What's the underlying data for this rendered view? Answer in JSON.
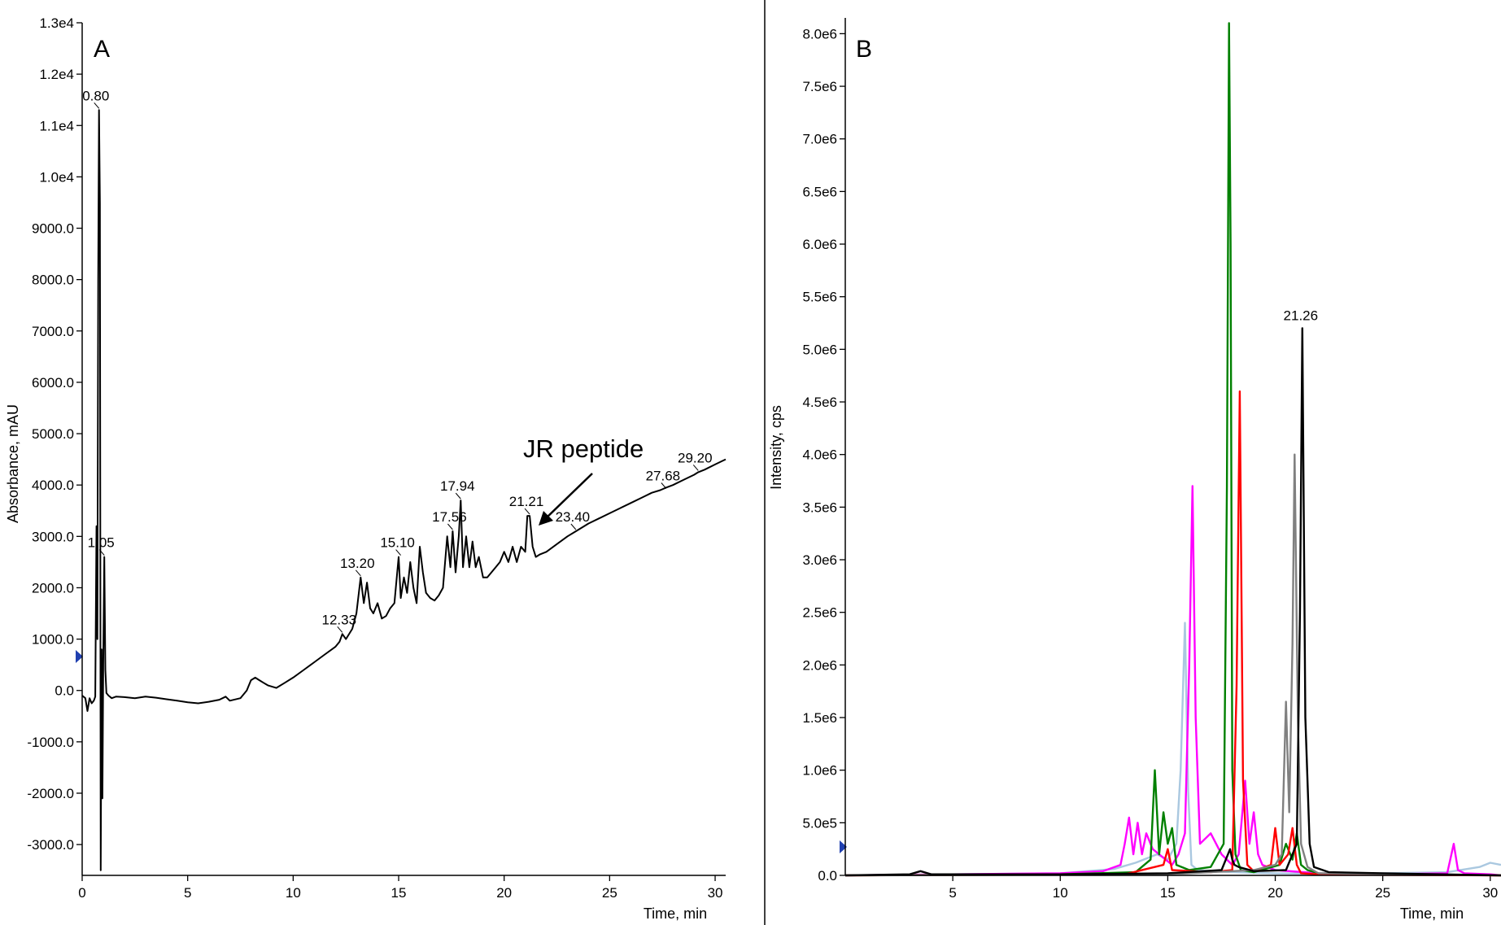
{
  "chart_data": [
    {
      "id": "A",
      "type": "line",
      "panel_label": "A",
      "xlabel": "Time, min",
      "ylabel": "Absorbance, mAU",
      "xlim": [
        0,
        30.5
      ],
      "ylim": [
        -3600,
        13000
      ],
      "x_ticks": [
        0,
        5,
        10,
        15,
        20,
        25,
        30
      ],
      "x_tick_labels": [
        "0",
        "5",
        "10",
        "15",
        "20",
        "25",
        "30"
      ],
      "y_ticks": [
        -3000,
        -2000,
        -1000,
        0,
        1000,
        2000,
        3000,
        4000,
        5000,
        6000,
        7000,
        8000,
        9000,
        10000,
        11000,
        12000,
        13000
      ],
      "y_tick_labels": [
        "-3000.0",
        "-2000.0",
        "-1000.0",
        "0.0",
        "1000.0",
        "2000.0",
        "3000.0",
        "4000.0",
        "5000.0",
        "6000.0",
        "7000.0",
        "8000.0",
        "9000.0",
        "1.0e4",
        "1.1e4",
        "1.2e4",
        "1.3e4"
      ],
      "grid": false,
      "color": "#000000",
      "series": [
        {
          "x": [
            0,
            0.15,
            0.25,
            0.35,
            0.45,
            0.55,
            0.62,
            0.68,
            0.72,
            0.76,
            0.8,
            0.84,
            0.88,
            0.92,
            0.96,
            1.0,
            1.05,
            1.1,
            1.15,
            1.25,
            1.4,
            1.6,
            2,
            2.5,
            3,
            3.5,
            4,
            4.5,
            5,
            5.5,
            6,
            6.5,
            6.8,
            7,
            7.5,
            7.8,
            8.0,
            8.2,
            8.4,
            8.6,
            8.8,
            9.2,
            9.6,
            10,
            10.5,
            11,
            11.5,
            12,
            12.2,
            12.33,
            12.5,
            12.8,
            13.0,
            13.2,
            13.35,
            13.5,
            13.65,
            13.8,
            14.0,
            14.2,
            14.4,
            14.6,
            14.8,
            15.0,
            15.1,
            15.25,
            15.4,
            15.55,
            15.7,
            15.85,
            16.0,
            16.15,
            16.3,
            16.5,
            16.7,
            16.9,
            17.1,
            17.3,
            17.45,
            17.56,
            17.7,
            17.85,
            17.94,
            18.05,
            18.2,
            18.35,
            18.5,
            18.65,
            18.8,
            19.0,
            19.2,
            19.4,
            19.6,
            19.8,
            20.0,
            20.2,
            20.4,
            20.6,
            20.8,
            21.0,
            21.1,
            21.21,
            21.35,
            21.5,
            21.7,
            22,
            22.5,
            23,
            23.4,
            24,
            24.5,
            25,
            25.5,
            26,
            26.5,
            27,
            27.4,
            27.68,
            28,
            28.5,
            29,
            29.2,
            29.5,
            30,
            30.5
          ],
          "y": [
            -100,
            -150,
            -400,
            -150,
            -250,
            -200,
            -120,
            3200,
            1000,
            8000,
            11300,
            9500,
            -3500,
            800,
            -2100,
            500,
            2600,
            400,
            -50,
            -100,
            -150,
            -120,
            -130,
            -150,
            -120,
            -140,
            -170,
            -200,
            -230,
            -250,
            -220,
            -180,
            -120,
            -200,
            -150,
            0,
            200,
            250,
            200,
            150,
            100,
            50,
            150,
            250,
            400,
            550,
            700,
            850,
            950,
            1100,
            1000,
            1200,
            1500,
            2200,
            1700,
            2100,
            1600,
            1500,
            1700,
            1400,
            1450,
            1600,
            1700,
            2600,
            1800,
            2200,
            1900,
            2500,
            2000,
            1700,
            2800,
            2300,
            1900,
            1800,
            1750,
            1850,
            2000,
            3000,
            2400,
            3100,
            2300,
            3000,
            3700,
            2400,
            3000,
            2400,
            2900,
            2400,
            2600,
            2200,
            2200,
            2300,
            2400,
            2500,
            2700,
            2500,
            2800,
            2500,
            2800,
            2700,
            3400,
            3400,
            2800,
            2600,
            2650,
            2700,
            2850,
            3000,
            3100,
            3250,
            3350,
            3450,
            3550,
            3650,
            3750,
            3850,
            3900,
            3950,
            4000,
            4100,
            4200,
            4250,
            4300,
            4400,
            4500
          ]
        }
      ],
      "peak_labels": [
        {
          "text": "0.80",
          "x": 0.8,
          "y": 11300
        },
        {
          "text": "1.05",
          "x": 1.05,
          "y": 2600
        },
        {
          "text": "12.33",
          "x": 12.33,
          "y": 1100
        },
        {
          "text": "13.20",
          "x": 13.2,
          "y": 2200
        },
        {
          "text": "15.10",
          "x": 15.1,
          "y": 2600
        },
        {
          "text": "17.56",
          "x": 17.56,
          "y": 3100
        },
        {
          "text": "17.94",
          "x": 17.94,
          "y": 3700
        },
        {
          "text": "21.21",
          "x": 21.21,
          "y": 3400
        },
        {
          "text": "23.40",
          "x": 23.4,
          "y": 3100
        },
        {
          "text": "27.68",
          "x": 27.68,
          "y": 3900
        },
        {
          "text": "29.20",
          "x": 29.2,
          "y": 4250
        }
      ],
      "annotations": [
        {
          "text": "JR peptide",
          "arrow_to": {
            "x": 21.5,
            "y": 3200
          }
        }
      ]
    },
    {
      "id": "B",
      "type": "line",
      "panel_label": "B",
      "xlabel": "Time, min",
      "ylabel": "Intensity, cps",
      "xlim": [
        0,
        30.5
      ],
      "ylim": [
        0,
        8150000
      ],
      "x_ticks": [
        5,
        10,
        15,
        20,
        25,
        30
      ],
      "x_tick_labels": [
        "5",
        "10",
        "15",
        "20",
        "25",
        "30"
      ],
      "y_ticks": [
        0,
        500000,
        1000000,
        1500000,
        2000000,
        2500000,
        3000000,
        3500000,
        4000000,
        4500000,
        5000000,
        5500000,
        6000000,
        6500000,
        7000000,
        7500000,
        8000000
      ],
      "y_tick_labels": [
        "0.0",
        "5.0e5",
        "1.0e6",
        "1.5e6",
        "2.0e6",
        "2.5e6",
        "3.0e6",
        "3.5e6",
        "4.0e6",
        "4.5e6",
        "5.0e6",
        "5.5e6",
        "6.0e6",
        "6.5e6",
        "7.0e6",
        "7.5e6",
        "8.0e6"
      ],
      "grid": false,
      "series": [
        {
          "color": "#aac8e0",
          "x": [
            0,
            10,
            12.5,
            13.5,
            14.5,
            15.0,
            15.4,
            15.6,
            15.8,
            15.95,
            16.1,
            16.4,
            17,
            18,
            20,
            22,
            25,
            28,
            29.5,
            30,
            30.5
          ],
          "y": [
            0,
            20000,
            60000,
            120000,
            200000,
            150000,
            300000,
            1000000,
            2400000,
            800000,
            100000,
            50000,
            40000,
            30000,
            20000,
            15000,
            20000,
            30000,
            80000,
            120000,
            100000
          ]
        },
        {
          "color": "#ff00ff",
          "x": [
            0,
            5,
            10,
            12,
            12.8,
            13.0,
            13.2,
            13.4,
            13.6,
            13.8,
            14.0,
            14.3,
            15.2,
            15.5,
            15.8,
            16.0,
            16.15,
            16.3,
            16.5,
            17.0,
            17.5,
            18.0,
            18.3,
            18.6,
            18.8,
            19.0,
            19.2,
            19.4,
            20,
            22,
            25,
            28,
            28.3,
            28.5,
            28.8,
            30,
            30.5
          ],
          "y": [
            0,
            10000,
            20000,
            40000,
            100000,
            300000,
            550000,
            200000,
            500000,
            200000,
            400000,
            250000,
            100000,
            200000,
            400000,
            2000000,
            3700000,
            1500000,
            300000,
            400000,
            200000,
            100000,
            200000,
            900000,
            300000,
            600000,
            200000,
            100000,
            50000,
            20000,
            10000,
            20000,
            300000,
            50000,
            20000,
            10000,
            0
          ]
        },
        {
          "color": "#008000",
          "x": [
            0,
            10,
            13.5,
            14.2,
            14.4,
            14.6,
            14.8,
            15.0,
            15.2,
            15.4,
            16,
            17,
            17.6,
            17.75,
            17.85,
            17.92,
            18.0,
            18.15,
            18.4,
            19,
            20.2,
            20.5,
            20.8,
            21.0,
            21.2,
            21.5,
            22,
            25,
            30.5
          ],
          "y": [
            0,
            10000,
            30000,
            150000,
            1000000,
            200000,
            600000,
            300000,
            450000,
            100000,
            50000,
            80000,
            300000,
            3700000,
            8100000,
            6000000,
            1000000,
            200000,
            50000,
            30000,
            100000,
            300000,
            150000,
            400000,
            100000,
            50000,
            20000,
            10000,
            0
          ]
        },
        {
          "color": "#ff0000",
          "x": [
            0,
            13,
            14.8,
            15.0,
            15.2,
            17,
            18.0,
            18.2,
            18.35,
            18.5,
            18.7,
            19,
            19.8,
            20.0,
            20.2,
            20.6,
            20.8,
            21.0,
            21.2,
            22,
            25,
            30.5
          ],
          "y": [
            0,
            10000,
            100000,
            250000,
            50000,
            30000,
            50000,
            1800000,
            4600000,
            900000,
            100000,
            40000,
            100000,
            450000,
            100000,
            200000,
            450000,
            100000,
            20000,
            10000,
            5000,
            0
          ]
        },
        {
          "color": "#808080",
          "x": [
            0,
            15,
            19,
            20.0,
            20.3,
            20.5,
            20.65,
            20.8,
            20.9,
            21.05,
            21.2,
            21.5,
            22,
            30.5
          ],
          "y": [
            0,
            10000,
            50000,
            100000,
            200000,
            1650000,
            600000,
            2200000,
            4000000,
            1500000,
            300000,
            80000,
            20000,
            0
          ]
        },
        {
          "color": "#000000",
          "x": [
            0,
            3,
            3.5,
            4,
            10,
            15,
            17.5,
            17.9,
            18.0,
            18.1,
            18.3,
            19,
            20.5,
            21.0,
            21.15,
            21.26,
            21.4,
            21.6,
            21.8,
            22.5,
            25,
            30.5
          ],
          "y": [
            0,
            10000,
            40000,
            10000,
            10000,
            20000,
            50000,
            250000,
            150000,
            100000,
            80000,
            40000,
            50000,
            300000,
            2500000,
            5200000,
            1500000,
            300000,
            80000,
            30000,
            20000,
            0
          ]
        }
      ],
      "peak_labels": [
        {
          "text": "21.26",
          "x": 21.26,
          "y": 5200000
        }
      ]
    }
  ]
}
